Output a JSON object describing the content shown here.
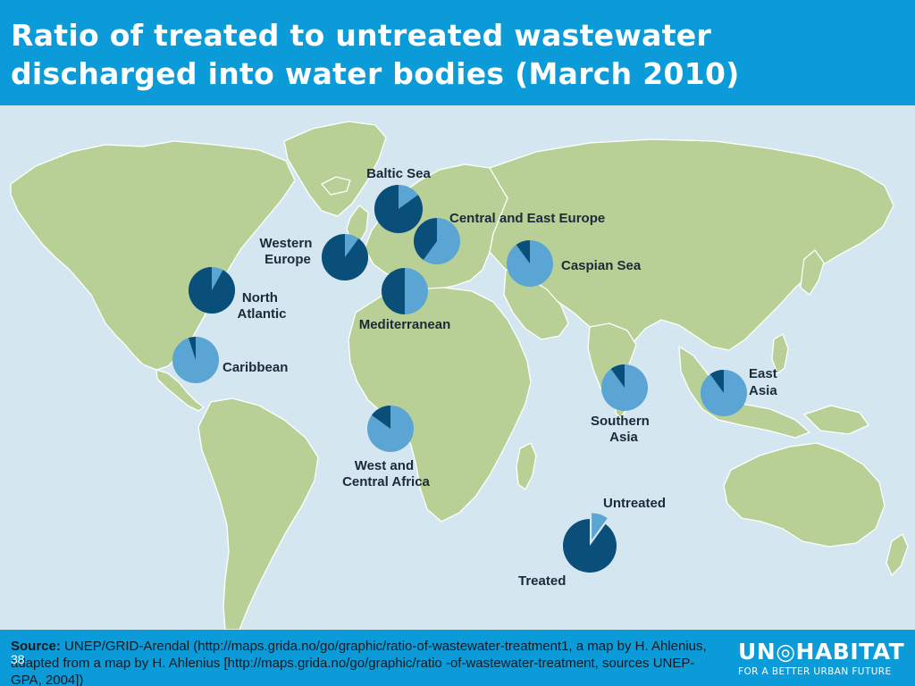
{
  "slide": {
    "title_line1": "Ratio of treated to untreated wastewater",
    "title_line2": "discharged into water bodies (March 2010)",
    "slide_number": "38"
  },
  "colors": {
    "title_bar": "#0b9bd8",
    "ocean": "#d4e6ef",
    "land": "#b8d096",
    "treated": "#0a4e7a",
    "untreated": "#5aa5d4"
  },
  "map": {
    "regions": [
      {
        "label_lines": [
          "Baltic Sea"
        ],
        "treated_fraction": 0.85
      },
      {
        "label_lines": [
          "Central and East Europe"
        ],
        "treated_fraction": 0.4
      },
      {
        "label_lines": [
          "Western",
          "Europe"
        ],
        "treated_fraction": 0.9
      },
      {
        "label_lines": [
          "Caspian Sea"
        ],
        "treated_fraction": 0.1
      },
      {
        "label_lines": [
          "North",
          "Atlantic"
        ],
        "treated_fraction": 0.92
      },
      {
        "label_lines": [
          "Mediterranean"
        ],
        "treated_fraction": 0.5
      },
      {
        "label_lines": [
          "Caribbean"
        ],
        "treated_fraction": 0.05
      },
      {
        "label_lines": [
          "West and",
          "Central Africa"
        ],
        "treated_fraction": 0.15
      },
      {
        "label_lines": [
          "Southern",
          "Asia"
        ],
        "treated_fraction": 0.1
      },
      {
        "label_lines": [
          "East",
          "Asia"
        ],
        "treated_fraction": 0.1
      }
    ],
    "legend": {
      "untreated_label": "Untreated",
      "treated_label": "Treated",
      "treated_fraction": 0.9
    }
  },
  "footer": {
    "source_label": "Source:",
    "source_text": " UNEP/GRID-Arendal (http://maps.grida.no/go/graphic/ratio-of-wastewater-treatment1, a map by H. Ahlenius, adapted from a map by H. Ahlenius [http://maps.grida.no/go/graphic/ratio -of-wastewater-treatment, sources UNEP-GPA, 2004])"
  },
  "logo": {
    "main": "UN◎HABITAT",
    "tagline": "FOR A BETTER URBAN FUTURE"
  }
}
